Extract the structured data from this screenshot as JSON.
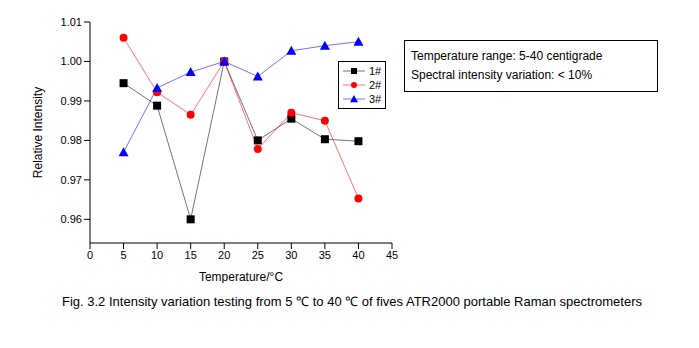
{
  "chart_data": {
    "type": "line",
    "x_label": "Temperature/°C",
    "y_label": "Relative Intensity",
    "x": [
      5,
      10,
      15,
      20,
      25,
      30,
      35,
      40
    ],
    "series": [
      {
        "name": "1#",
        "color": "#000000",
        "marker": "square",
        "values": [
          0.9945,
          0.9888,
          0.96,
          1.0,
          0.98,
          0.9855,
          0.9803,
          0.9798
        ]
      },
      {
        "name": "2#",
        "color": "#ff0000",
        "marker": "circle",
        "values": [
          1.006,
          0.9922,
          0.9865,
          1.0,
          0.9778,
          0.987,
          0.985,
          0.9653
        ]
      },
      {
        "name": "3#",
        "color": "#0000ff",
        "marker": "triangle",
        "values": [
          0.977,
          0.9933,
          0.9973,
          1.0,
          0.9962,
          1.0027,
          1.004,
          1.005
        ]
      }
    ],
    "xlim": [
      0,
      45
    ],
    "xticks": [
      0,
      5,
      10,
      15,
      20,
      25,
      30,
      35,
      40,
      45
    ],
    "ylim": [
      0.954,
      1.01
    ],
    "yticks": [
      0.96,
      0.97,
      0.98,
      0.99,
      {
        "value": 1,
        "label": "1.00"
      },
      1.01
    ],
    "legend": "upper right",
    "annotations": [
      "Temperature range: 5-40 centigrade",
      "Spectral intensity variation: < 10%"
    ],
    "caption": "Fig. 3.2 Intensity variation testing from 5 ℃ to 40 ℃ of fives ATR2000 portable Raman spectrometers"
  }
}
